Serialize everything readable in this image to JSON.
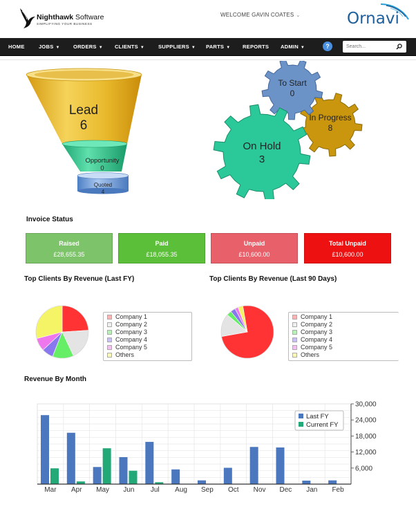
{
  "header": {
    "brand_name": "Nighthawk",
    "brand_suffix": "Software",
    "brand_tagline": "SIMPLIFYING YOUR BUSINESS",
    "welcome": "WELCOME GAVIN COATES",
    "right_logo": "Ornavi"
  },
  "navbar": {
    "items": [
      {
        "label": "HOME",
        "dropdown": false
      },
      {
        "label": "JOBS",
        "dropdown": true
      },
      {
        "label": "ORDERS",
        "dropdown": true
      },
      {
        "label": "CLIENTS",
        "dropdown": true
      },
      {
        "label": "SUPPLIERS",
        "dropdown": true
      },
      {
        "label": "PARTS",
        "dropdown": true
      },
      {
        "label": "REPORTS",
        "dropdown": false
      },
      {
        "label": "ADMIN",
        "dropdown": true
      }
    ],
    "help_label": "?",
    "search_placeholder": "Search..."
  },
  "funnel": {
    "lead": {
      "label": "Lead",
      "value": "6"
    },
    "opportunity": {
      "label": "Opportunity",
      "value": "0"
    },
    "quoted": {
      "label": "Quoted",
      "value": "4"
    }
  },
  "gears": {
    "to_start": {
      "label": "To Start",
      "value": "0"
    },
    "in_progress": {
      "label": "In Progress",
      "value": "8"
    },
    "on_hold": {
      "label": "On Hold",
      "value": "3"
    }
  },
  "invoice_status": {
    "title": "Invoice Status",
    "boxes": [
      {
        "label": "Raised",
        "value": "£28,655.35",
        "color": "#7dc36a"
      },
      {
        "label": "Paid",
        "value": "£18,055.35",
        "color": "#5cbf3a"
      },
      {
        "label": "Unpaid",
        "value": "£10,600.00",
        "color": "#e8616a"
      },
      {
        "label": "Total Unpaid",
        "value": "£10,600.00",
        "color": "#ee1111"
      }
    ]
  },
  "top_clients_fy": {
    "title": "Top Clients By Revenue (Last FY)",
    "legend": [
      "Company 1",
      "Company 2",
      "Company 3",
      "Company 4",
      "Company 5",
      "Others"
    ],
    "slice_colors": [
      "#ff3333",
      "#e4e4e4",
      "#66ee66",
      "#8877ee",
      "#ee77ee",
      "#f4f466"
    ],
    "shares": [
      24,
      19,
      13,
      7,
      8,
      29
    ]
  },
  "top_clients_90": {
    "title": "Top Clients By Revenue (Last 90 Days)",
    "legend": [
      "Company 1",
      "Company 2",
      "Company 3",
      "Company 4",
      "Company 5",
      "Others"
    ],
    "slice_colors": [
      "#ff3333",
      "#e4e4e4",
      "#66ee66",
      "#8877ee",
      "#ee77ee",
      "#f4f466"
    ],
    "shares": [
      75,
      14,
      3,
      3,
      2,
      3
    ]
  },
  "revenue_by_month": {
    "title": "Revenue By Month"
  },
  "chart_data": {
    "type": "bar",
    "categories": [
      "Mar",
      "Apr",
      "May",
      "Jun",
      "Jul",
      "Aug",
      "Sep",
      "Oct",
      "Nov",
      "Dec",
      "Jan",
      "Feb"
    ],
    "series": [
      {
        "name": "Last FY",
        "color": "#4b77be",
        "values": [
          25800,
          19200,
          6400,
          10100,
          15800,
          5500,
          1400,
          6100,
          13900,
          13700,
          1300,
          1400
        ]
      },
      {
        "name": "Current FY",
        "color": "#23a878",
        "values": [
          5900,
          1000,
          13400,
          5000,
          700,
          0,
          0,
          0,
          0,
          0,
          0,
          0
        ]
      }
    ],
    "yticks": [
      "6,000",
      "12,000",
      "18,000",
      "24,000",
      "30,000"
    ],
    "ylim": [
      0,
      30000
    ],
    "grid": true,
    "legend_position": "top-right"
  }
}
